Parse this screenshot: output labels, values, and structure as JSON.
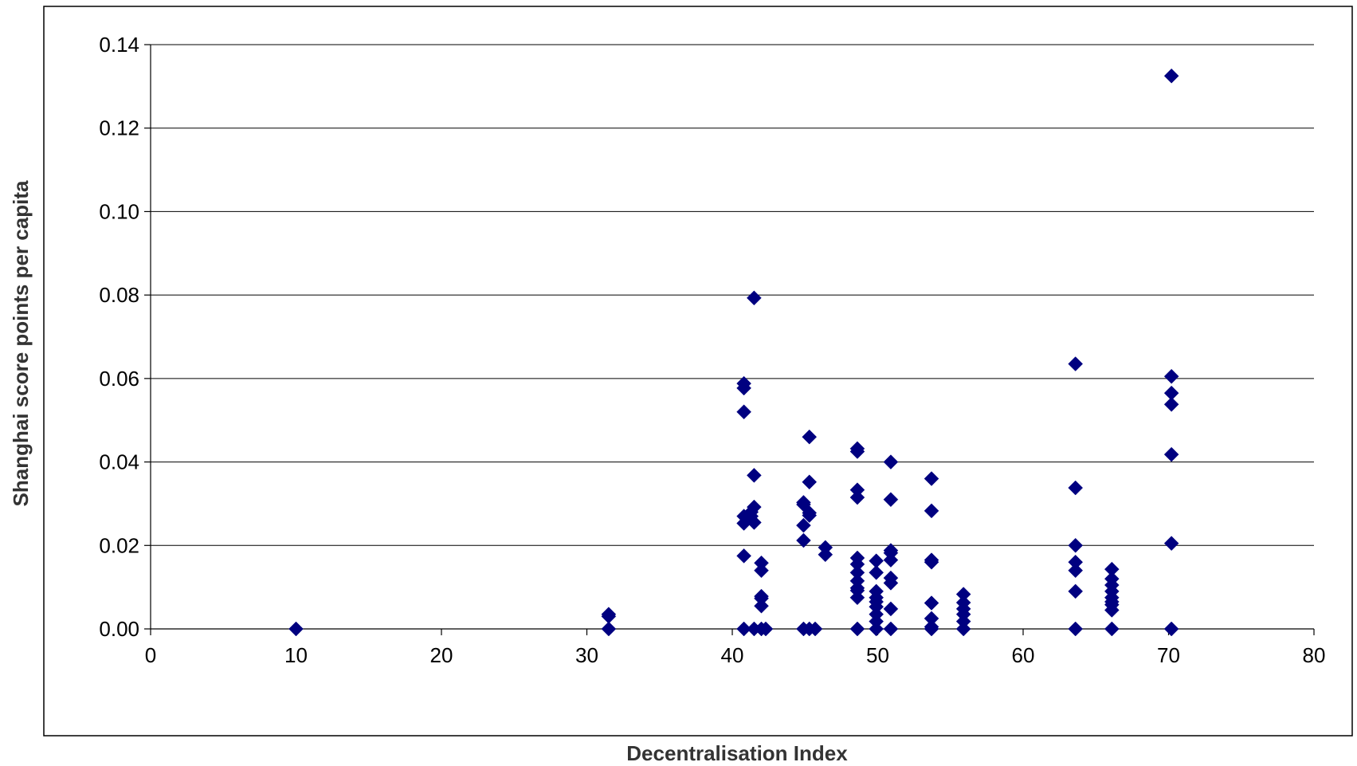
{
  "chart_data": {
    "type": "scatter",
    "title": "",
    "xlabel": "Decentralisation Index",
    "ylabel": "Shanghai score points per capita",
    "xlim": [
      0,
      80
    ],
    "ylim": [
      0,
      0.14
    ],
    "x_ticks": [
      "0",
      "10",
      "20",
      "30",
      "40",
      "50",
      "60",
      "70",
      "80"
    ],
    "y_ticks": [
      "0.00",
      "0.02",
      "0.04",
      "0.06",
      "0.08",
      "0.10",
      "0.12",
      "0.14"
    ],
    "grid": "horizontal",
    "legend": "none",
    "marker": "diamond",
    "marker_color": "#000080",
    "series": [
      {
        "points": [
          [
            10.0,
            0.0
          ],
          [
            31.5,
            0.0035
          ],
          [
            31.5,
            0.003
          ],
          [
            31.5,
            0.0
          ],
          [
            40.8,
            0.0588
          ],
          [
            40.8,
            0.0577
          ],
          [
            40.8,
            0.052
          ],
          [
            40.8,
            0.027
          ],
          [
            40.8,
            0.0253
          ],
          [
            40.8,
            0.0175
          ],
          [
            40.8,
            0.0
          ],
          [
            41.3,
            0.028
          ],
          [
            41.3,
            0.027
          ],
          [
            41.5,
            0.0793
          ],
          [
            41.5,
            0.0368
          ],
          [
            41.5,
            0.0292
          ],
          [
            41.5,
            0.0255
          ],
          [
            41.5,
            0.0
          ],
          [
            42.0,
            0.0158
          ],
          [
            42.0,
            0.014
          ],
          [
            42.0,
            0.0078
          ],
          [
            42.0,
            0.0073
          ],
          [
            42.0,
            0.0055
          ],
          [
            42.0,
            0.0
          ],
          [
            42.3,
            0.0
          ],
          [
            44.9,
            0.0303
          ],
          [
            44.9,
            0.0298
          ],
          [
            44.9,
            0.0248
          ],
          [
            44.9,
            0.0212
          ],
          [
            44.9,
            0.0
          ],
          [
            45.3,
            0.046
          ],
          [
            45.3,
            0.0352
          ],
          [
            45.3,
            0.0278
          ],
          [
            45.3,
            0.0272
          ],
          [
            45.3,
            0.0
          ],
          [
            45.7,
            0.0
          ],
          [
            46.4,
            0.0195
          ],
          [
            46.4,
            0.0178
          ],
          [
            48.6,
            0.0432
          ],
          [
            48.6,
            0.0425
          ],
          [
            48.6,
            0.0333
          ],
          [
            48.6,
            0.0315
          ],
          [
            48.6,
            0.017
          ],
          [
            48.6,
            0.0155
          ],
          [
            48.6,
            0.0135
          ],
          [
            48.6,
            0.0115
          ],
          [
            48.6,
            0.0098
          ],
          [
            48.6,
            0.0092
          ],
          [
            48.6,
            0.0075
          ],
          [
            48.6,
            0.0
          ],
          [
            49.9,
            0.0163
          ],
          [
            49.9,
            0.0135
          ],
          [
            49.9,
            0.009
          ],
          [
            49.9,
            0.0075
          ],
          [
            49.9,
            0.0065
          ],
          [
            49.9,
            0.0053
          ],
          [
            49.9,
            0.0035
          ],
          [
            49.9,
            0.0018
          ],
          [
            49.9,
            0.0
          ],
          [
            50.9,
            0.04
          ],
          [
            50.9,
            0.031
          ],
          [
            50.9,
            0.0188
          ],
          [
            50.9,
            0.0182
          ],
          [
            50.9,
            0.0165
          ],
          [
            50.9,
            0.0122
          ],
          [
            50.9,
            0.011
          ],
          [
            50.9,
            0.0048
          ],
          [
            50.9,
            0.0
          ],
          [
            53.7,
            0.036
          ],
          [
            53.7,
            0.0283
          ],
          [
            53.7,
            0.0165
          ],
          [
            53.7,
            0.016
          ],
          [
            53.7,
            0.0062
          ],
          [
            53.7,
            0.0025
          ],
          [
            53.7,
            0.0005
          ],
          [
            53.7,
            0.0
          ],
          [
            55.9,
            0.0083
          ],
          [
            55.9,
            0.0063
          ],
          [
            55.9,
            0.0048
          ],
          [
            55.9,
            0.0035
          ],
          [
            55.9,
            0.0018
          ],
          [
            55.9,
            0.0
          ],
          [
            63.6,
            0.0635
          ],
          [
            63.6,
            0.0338
          ],
          [
            63.6,
            0.02
          ],
          [
            63.6,
            0.016
          ],
          [
            63.6,
            0.014
          ],
          [
            63.6,
            0.009
          ],
          [
            63.6,
            0.0
          ],
          [
            66.1,
            0.0143
          ],
          [
            66.1,
            0.012
          ],
          [
            66.1,
            0.0105
          ],
          [
            66.1,
            0.009
          ],
          [
            66.1,
            0.0075
          ],
          [
            66.1,
            0.0065
          ],
          [
            66.1,
            0.0058
          ],
          [
            66.1,
            0.0045
          ],
          [
            66.1,
            0.0
          ],
          [
            70.2,
            0.1325
          ],
          [
            70.2,
            0.0605
          ],
          [
            70.2,
            0.0565
          ],
          [
            70.2,
            0.0538
          ],
          [
            70.2,
            0.0418
          ],
          [
            70.2,
            0.0205
          ],
          [
            70.2,
            0.0
          ]
        ]
      }
    ]
  }
}
